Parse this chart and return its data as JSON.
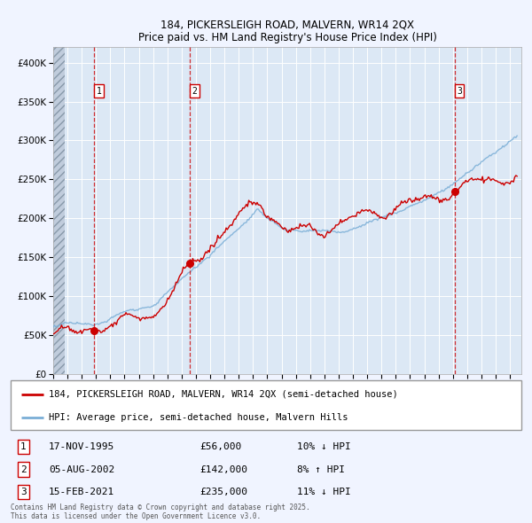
{
  "title_line1": "184, PICKERSLEIGH ROAD, MALVERN, WR14 2QX",
  "title_line2": "Price paid vs. HM Land Registry's House Price Index (HPI)",
  "ylim": [
    0,
    420000
  ],
  "xlim_start": 1993.0,
  "xlim_end": 2025.8,
  "yticks": [
    0,
    50000,
    100000,
    150000,
    200000,
    250000,
    300000,
    350000,
    400000
  ],
  "ytick_labels": [
    "£0",
    "£50K",
    "£100K",
    "£150K",
    "£200K",
    "£250K",
    "£300K",
    "£350K",
    "£400K"
  ],
  "red_line_color": "#cc0000",
  "blue_line_color": "#7aaed6",
  "sale1_x": 1995.88,
  "sale1_y": 56000,
  "sale1_label": "1",
  "sale1_date": "17-NOV-1995",
  "sale1_price": "£56,000",
  "sale1_hpi": "10% ↓ HPI",
  "sale2_x": 2002.59,
  "sale2_y": 142000,
  "sale2_label": "2",
  "sale2_date": "05-AUG-2002",
  "sale2_price": "£142,000",
  "sale2_hpi": "8% ↑ HPI",
  "sale3_x": 2021.12,
  "sale3_y": 235000,
  "sale3_label": "3",
  "sale3_date": "15-FEB-2021",
  "sale3_price": "£235,000",
  "sale3_hpi": "11% ↓ HPI",
  "legend1_text": "184, PICKERSLEIGH ROAD, MALVERN, WR14 2QX (semi-detached house)",
  "legend2_text": "HPI: Average price, semi-detached house, Malvern Hills",
  "footnote": "Contains HM Land Registry data © Crown copyright and database right 2025.\nThis data is licensed under the Open Government Licence v3.0.",
  "bg_color": "#f0f4ff",
  "plot_bg_color": "#dce8f5",
  "grid_color": "#ffffff"
}
